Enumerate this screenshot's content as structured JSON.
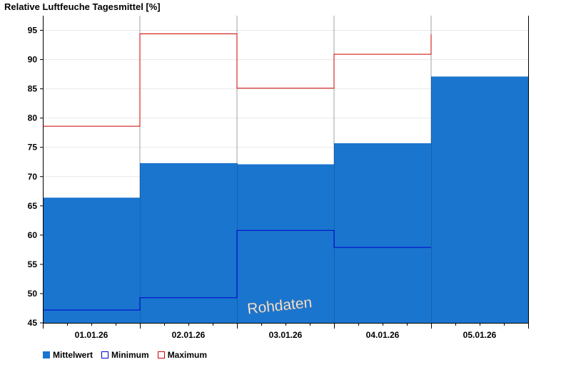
{
  "chart_data": {
    "type": "bar",
    "title": "Relative Luftfeuche Tagesmittel [%]",
    "categories": [
      "01.01.26",
      "02.01.26",
      "03.01.26",
      "04.01.26",
      "05.01.26"
    ],
    "series": [
      {
        "name": "Mittelwert",
        "values": [
          66.4,
          72.3,
          72.1,
          75.7,
          87.1
        ],
        "color": "#1a75cf"
      },
      {
        "name": "Minimum",
        "values": [
          47.2,
          49.3,
          60.8,
          57.9,
          null
        ],
        "color": "#0000cc"
      },
      {
        "name": "Maximum",
        "values": [
          78.6,
          94.4,
          85.1,
          90.9,
          null
        ],
        "color": "#cc0000"
      }
    ],
    "last_max_stub": 94.3,
    "ylim": [
      45,
      97.5
    ],
    "yticks": [
      45,
      50,
      55,
      60,
      65,
      70,
      75,
      80,
      85,
      90,
      95
    ],
    "grid": true,
    "legend_position": "bottom-left",
    "watermark": "Rohdaten"
  }
}
